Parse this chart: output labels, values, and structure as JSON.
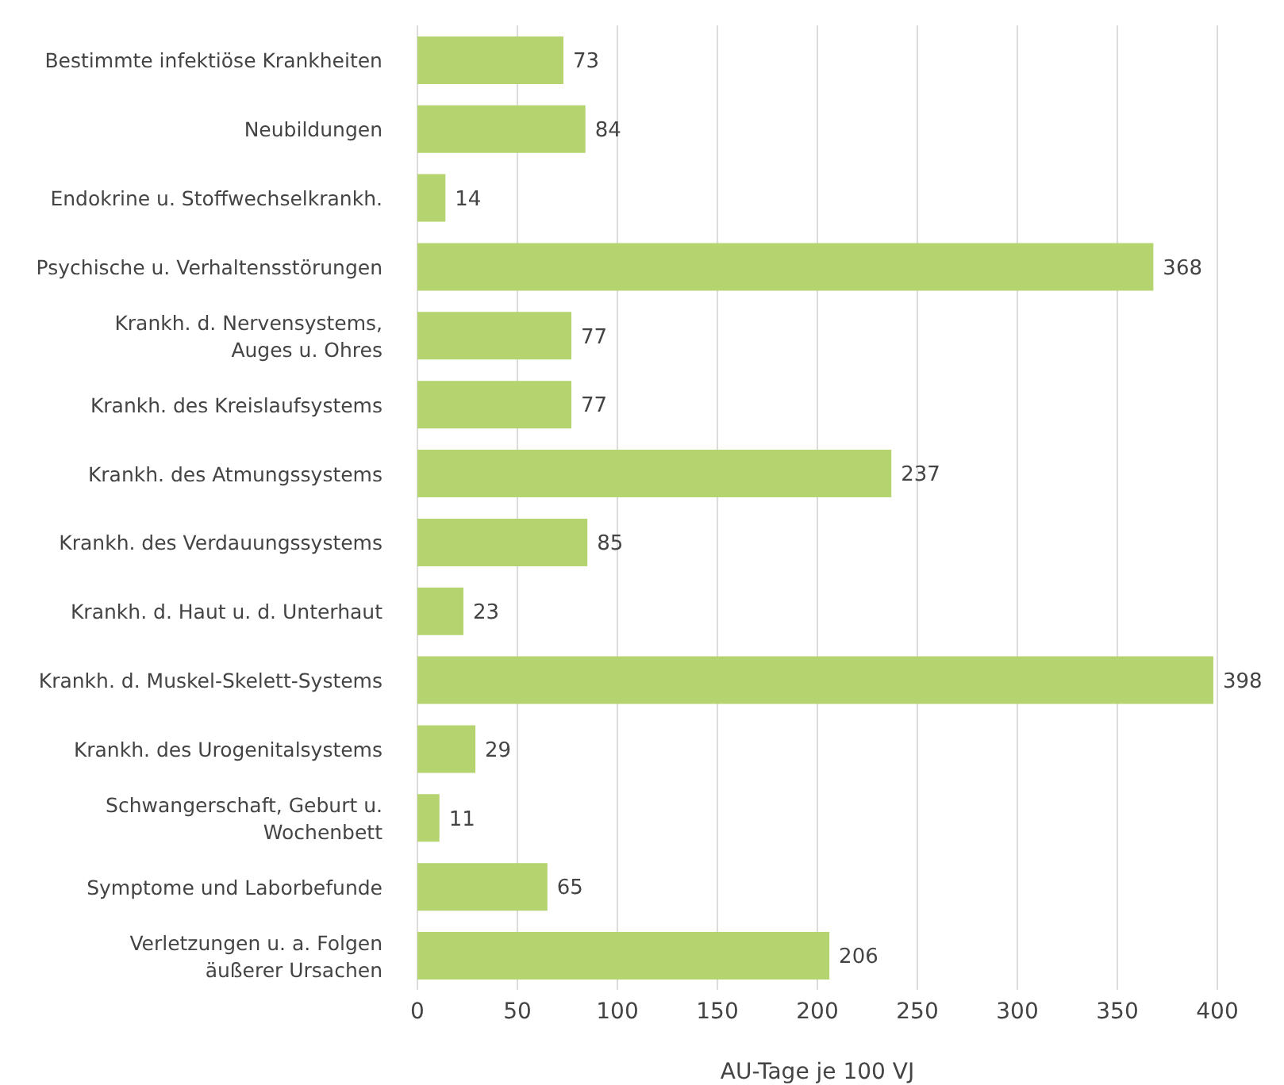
{
  "chart_data": {
    "type": "bar",
    "orientation": "horizontal",
    "xlabel": "AU-Tage je 100 VJ",
    "categories": [
      "Bestimmte infektiöse Krankheiten",
      "Neubildungen",
      "Endokrine u. Stoffwechselkrankh.",
      "Psychische u. Verhaltensstörungen",
      "Krankh. d. Nervensystems,\nAuges u. Ohres",
      "Krankh. des Kreislaufsystems",
      "Krankh. des Atmungssystems",
      "Krankh. des Verdauungssystems",
      "Krankh. d. Haut u. d. Unterhaut",
      "Krankh. d. Muskel-Skelett-Systems",
      "Krankh. des Urogenitalsystems",
      "Schwangerschaft, Geburt u.\nWochenbett",
      "Symptome und Laborbefunde",
      "Verletzungen u. a. Folgen\näußerer Ursachen"
    ],
    "values": [
      73,
      84,
      14,
      368,
      77,
      77,
      237,
      85,
      23,
      398,
      29,
      11,
      65,
      206
    ],
    "color": "#b5d36e",
    "xlim": [
      0,
      400
    ],
    "xticks": [
      0,
      50,
      100,
      150,
      200,
      250,
      300,
      350,
      400
    ],
    "grid": "x",
    "data_labels": true
  }
}
